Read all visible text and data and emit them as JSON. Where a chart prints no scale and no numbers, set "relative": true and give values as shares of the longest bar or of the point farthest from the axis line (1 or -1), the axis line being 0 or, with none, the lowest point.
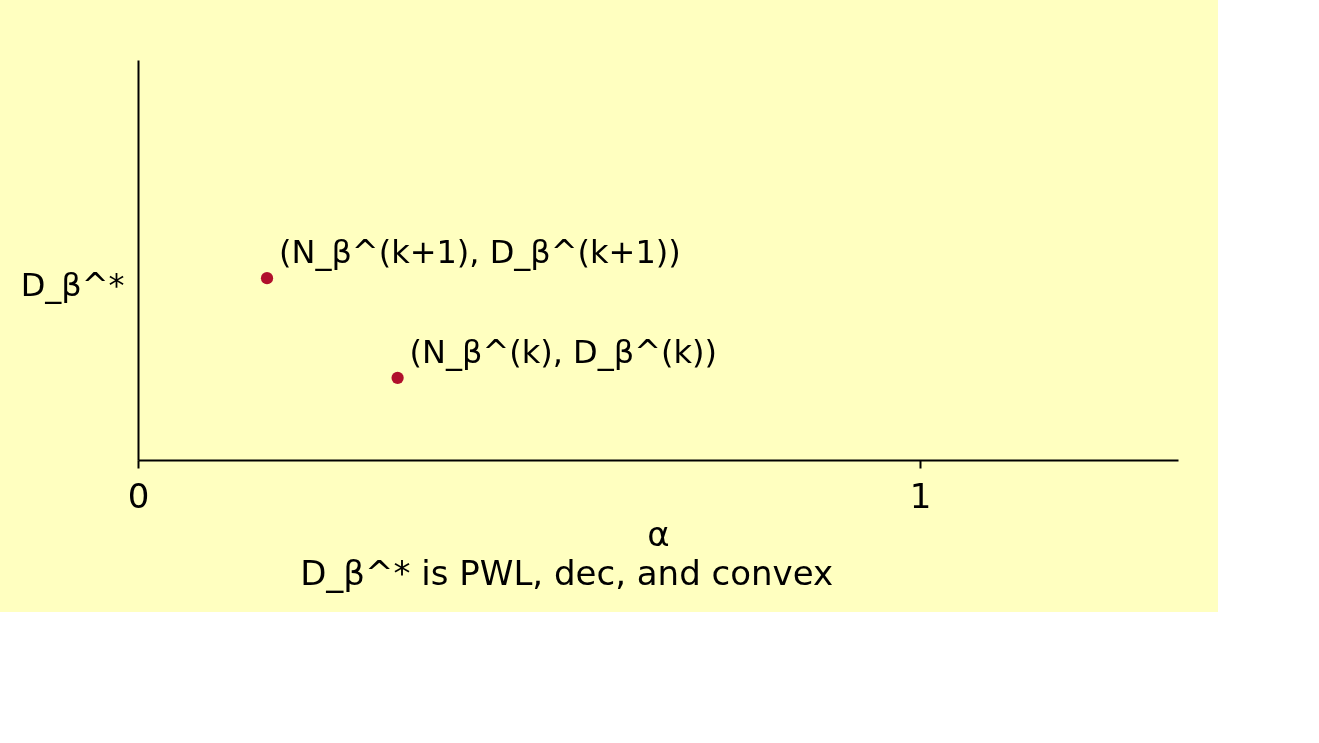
{
  "chart_data": {
    "type": "scatter",
    "relative": true,
    "x": [
      0.165,
      0.332
    ],
    "series": [
      {
        "color": "#b0102c",
        "values": [
          1,
          0.452
        ]
      }
    ],
    "xlim": [
      0,
      1.33
    ],
    "xticks": [
      0,
      1
    ],
    "xlabel": "α",
    "ylabel": "D_β^*",
    "marker": "circle",
    "grid": false,
    "legend": false,
    "annotations": [
      {
        "text": "(N_β^(k+1), D_β^(k+1))",
        "x": 0.165,
        "y": 1
      },
      {
        "text": "(N_β^(k), D_β^(k))",
        "x": 0.332,
        "y": 0.452
      },
      "D_β^* is PWL, dec, and convex"
    ]
  }
}
